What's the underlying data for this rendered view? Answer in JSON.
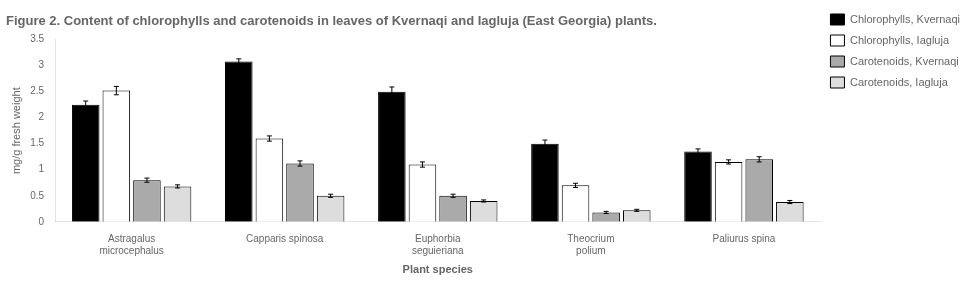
{
  "chart_data": {
    "type": "bar",
    "title": "Figure 2. Content of chlorophylls and carotenoids in leaves of Kvernaqi and Iagluja (East Georgia) plants.",
    "categories": [
      "Astragalus\nmicrocephalus",
      "Capparis spinosa",
      "Euphorbia\nseguieriana",
      "Theocrium\npolium",
      "Paliurus spina"
    ],
    "series": [
      {
        "name": "Chlorophylls, Kvernaqi",
        "color": "#000000",
        "values": [
          2.25,
          3.08,
          2.5,
          1.5,
          1.35
        ],
        "errors": [
          0.07,
          0.05,
          0.09,
          0.07,
          0.05
        ]
      },
      {
        "name": "Chlorophylls, Iagluja",
        "color": "#ffffff",
        "values": [
          2.52,
          1.6,
          1.1,
          0.7,
          1.15
        ],
        "errors": [
          0.08,
          0.05,
          0.05,
          0.04,
          0.04
        ]
      },
      {
        "name": "Carotenoids, Kvernaqi",
        "color": "#aaaaaa",
        "values": [
          0.8,
          1.12,
          0.5,
          0.18,
          1.2
        ],
        "errors": [
          0.04,
          0.05,
          0.03,
          0.02,
          0.05
        ]
      },
      {
        "name": "Carotenoids, Iagluja",
        "color": "#dddddd",
        "values": [
          0.68,
          0.5,
          0.4,
          0.22,
          0.38
        ],
        "errors": [
          0.03,
          0.03,
          0.02,
          0.02,
          0.03
        ]
      }
    ],
    "xlabel": "Plant species",
    "ylabel": "mg/g fresh weight",
    "ylim": [
      0,
      3.5
    ],
    "yticks": [
      0,
      0.5,
      1,
      1.5,
      2,
      2.5,
      3,
      3.5
    ],
    "grid": false,
    "legend": "right"
  }
}
